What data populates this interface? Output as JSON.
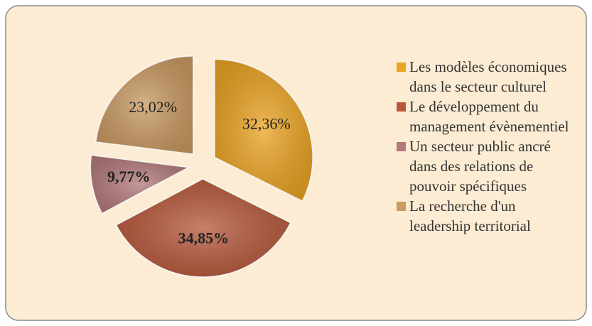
{
  "chart_data": {
    "type": "pie",
    "categories": [
      "Les modèles économiques dans le secteur culturel",
      "Le développement du management évènementiel",
      "Un secteur public ancré dans des relations de pouvoir spécifiques",
      "La recherche d'un leadership territorial"
    ],
    "values": [
      32.36,
      34.85,
      9.77,
      23.02
    ],
    "value_labels": [
      "32,36%",
      "34,85%",
      "9,77%",
      "23,02%"
    ],
    "colors": [
      "#eba323",
      "#b6573a",
      "#b3797a",
      "#c99a62"
    ],
    "legend": "right"
  }
}
